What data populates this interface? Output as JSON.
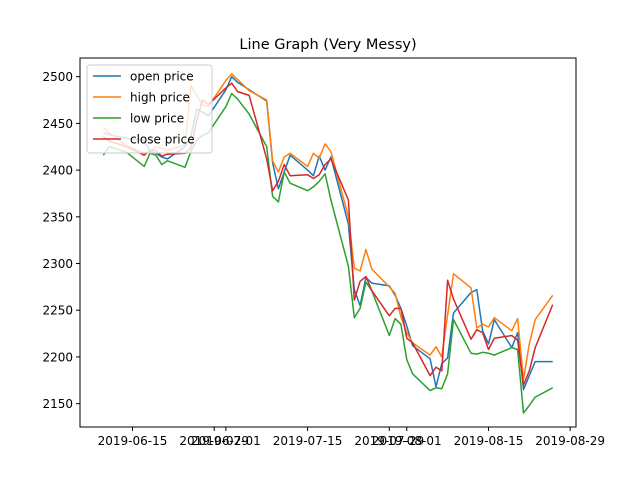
{
  "chart_data": {
    "type": "line",
    "title": "Line Graph (Very Messy)",
    "xlabel": "",
    "ylabel": "",
    "x_type": "date",
    "xlim": [
      "2019-06-06",
      "2019-08-30"
    ],
    "ylim": [
      2125,
      2520
    ],
    "x_ticks": [
      "2019-06-15",
      "2019-06-29",
      "2019-07-01",
      "2019-07-15",
      "2019-07-29",
      "2019-08-01",
      "2019-08-15",
      "2019-08-29"
    ],
    "y_ticks": [
      2150,
      2200,
      2250,
      2300,
      2350,
      2400,
      2450,
      2500
    ],
    "grid": false,
    "legend_position": "top-left",
    "x": [
      "2019-06-10",
      "2019-06-11",
      "2019-06-14",
      "2019-06-17",
      "2019-06-18",
      "2019-06-19",
      "2019-06-20",
      "2019-06-21",
      "2019-06-24",
      "2019-06-25",
      "2019-06-26",
      "2019-06-27",
      "2019-06-28",
      "2019-07-01",
      "2019-07-02",
      "2019-07-03",
      "2019-07-05",
      "2019-07-08",
      "2019-07-09",
      "2019-07-10",
      "2019-07-11",
      "2019-07-12",
      "2019-07-15",
      "2019-07-16",
      "2019-07-17",
      "2019-07-18",
      "2019-07-19",
      "2019-07-22",
      "2019-07-23",
      "2019-07-24",
      "2019-07-25",
      "2019-07-26",
      "2019-07-29",
      "2019-07-30",
      "2019-07-31",
      "2019-08-01",
      "2019-08-02",
      "2019-08-05",
      "2019-08-06",
      "2019-08-07",
      "2019-08-08",
      "2019-08-09",
      "2019-08-12",
      "2019-08-13",
      "2019-08-14",
      "2019-08-15",
      "2019-08-16",
      "2019-08-19",
      "2019-08-20",
      "2019-08-21",
      "2019-08-22",
      "2019-08-23",
      "2019-08-26"
    ],
    "series": [
      {
        "name": "open price",
        "color": "#1f77b4",
        "values": [
          2440,
          2438,
          2434,
          2432,
          2420,
          2418,
          2414,
          2412,
          2425,
          2436,
          2465,
          2462,
          2458,
          2486,
          2500,
          2494,
          2486,
          2474,
          2408,
          2380,
          2398,
          2416,
          2400,
          2394,
          2415,
          2400,
          2414,
          2342,
          2272,
          2255,
          2285,
          2279,
          2276,
          2266,
          2252,
          2233,
          2212,
          2198,
          2168,
          2193,
          2199,
          2247,
          2269,
          2272,
          2228,
          2214,
          2240,
          2210,
          2226,
          2165,
          2180,
          2195,
          2195
        ]
      },
      {
        "name": "high price",
        "color": "#ff7f0e",
        "values": [
          2446,
          2440,
          2426,
          2418,
          2420,
          2425,
          2423,
          2421,
          2427,
          2490,
          2480,
          2470,
          2468,
          2496,
          2503,
          2497,
          2485,
          2475,
          2410,
          2398,
          2414,
          2418,
          2404,
          2418,
          2413,
          2428,
          2420,
          2350,
          2295,
          2292,
          2315,
          2294,
          2275,
          2268,
          2243,
          2226,
          2215,
          2202,
          2211,
          2200,
          2245,
          2289,
          2274,
          2231,
          2235,
          2232,
          2242,
          2228,
          2241,
          2176,
          2214,
          2240,
          2266
        ]
      },
      {
        "name": "low price",
        "color": "#2ca02c",
        "values": [
          2416,
          2425,
          2419,
          2404,
          2418,
          2416,
          2406,
          2410,
          2403,
          2420,
          2432,
          2437,
          2440,
          2468,
          2482,
          2476,
          2460,
          2425,
          2372,
          2366,
          2398,
          2386,
          2378,
          2382,
          2388,
          2396,
          2368,
          2297,
          2242,
          2252,
          2280,
          2271,
          2223,
          2241,
          2235,
          2197,
          2182,
          2164,
          2167,
          2166,
          2182,
          2240,
          2204,
          2203,
          2205,
          2204,
          2202,
          2210,
          2208,
          2140,
          2148,
          2157,
          2167
        ]
      },
      {
        "name": "close price",
        "color": "#d62728",
        "values": [
          2436,
          2431,
          2425,
          2416,
          2421,
          2421,
          2415,
          2417,
          2418,
          2424,
          2453,
          2475,
          2470,
          2488,
          2493,
          2484,
          2480,
          2412,
          2378,
          2388,
          2406,
          2394,
          2395,
          2391,
          2395,
          2406,
          2412,
          2368,
          2261,
          2281,
          2286,
          2271,
          2244,
          2252,
          2252,
          2220,
          2215,
          2180,
          2189,
          2185,
          2282,
          2262,
          2219,
          2229,
          2226,
          2208,
          2220,
          2223,
          2218,
          2170,
          2185,
          2210,
          2256
        ]
      }
    ]
  }
}
